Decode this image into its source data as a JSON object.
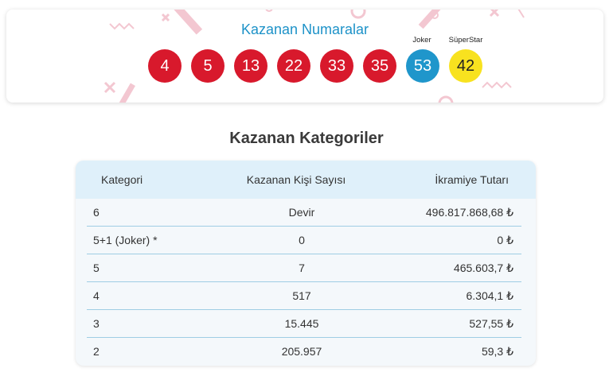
{
  "winning_numbers": {
    "title": "Kazanan Numaralar",
    "numbers": [
      "4",
      "5",
      "13",
      "22",
      "33",
      "35"
    ],
    "joker": {
      "label": "Joker",
      "value": "53"
    },
    "superstar": {
      "label": "SüperStar",
      "value": "42"
    },
    "colors": {
      "main": "#d8192c",
      "joker": "#1f96cb",
      "superstar": "#f8e21f",
      "title": "#1d92c8"
    }
  },
  "categories": {
    "title": "Kazanan Kategoriler",
    "headers": [
      "Kategori",
      "Kazanan Kişi Sayısı",
      "İkramiye Tutarı"
    ],
    "rows": [
      {
        "category": "6",
        "winners": "Devir",
        "prize": "496.817.868,68 ₺"
      },
      {
        "category": "5+1 (Joker) *",
        "winners": "0",
        "prize": "0 ₺"
      },
      {
        "category": "5",
        "winners": "7",
        "prize": "465.603,7 ₺"
      },
      {
        "category": "4",
        "winners": "517",
        "prize": "6.304,1 ₺"
      },
      {
        "category": "3",
        "winners": "15.445",
        "prize": "527,55 ₺"
      },
      {
        "category": "2",
        "winners": "205.957",
        "prize": "59,3 ₺"
      }
    ]
  }
}
